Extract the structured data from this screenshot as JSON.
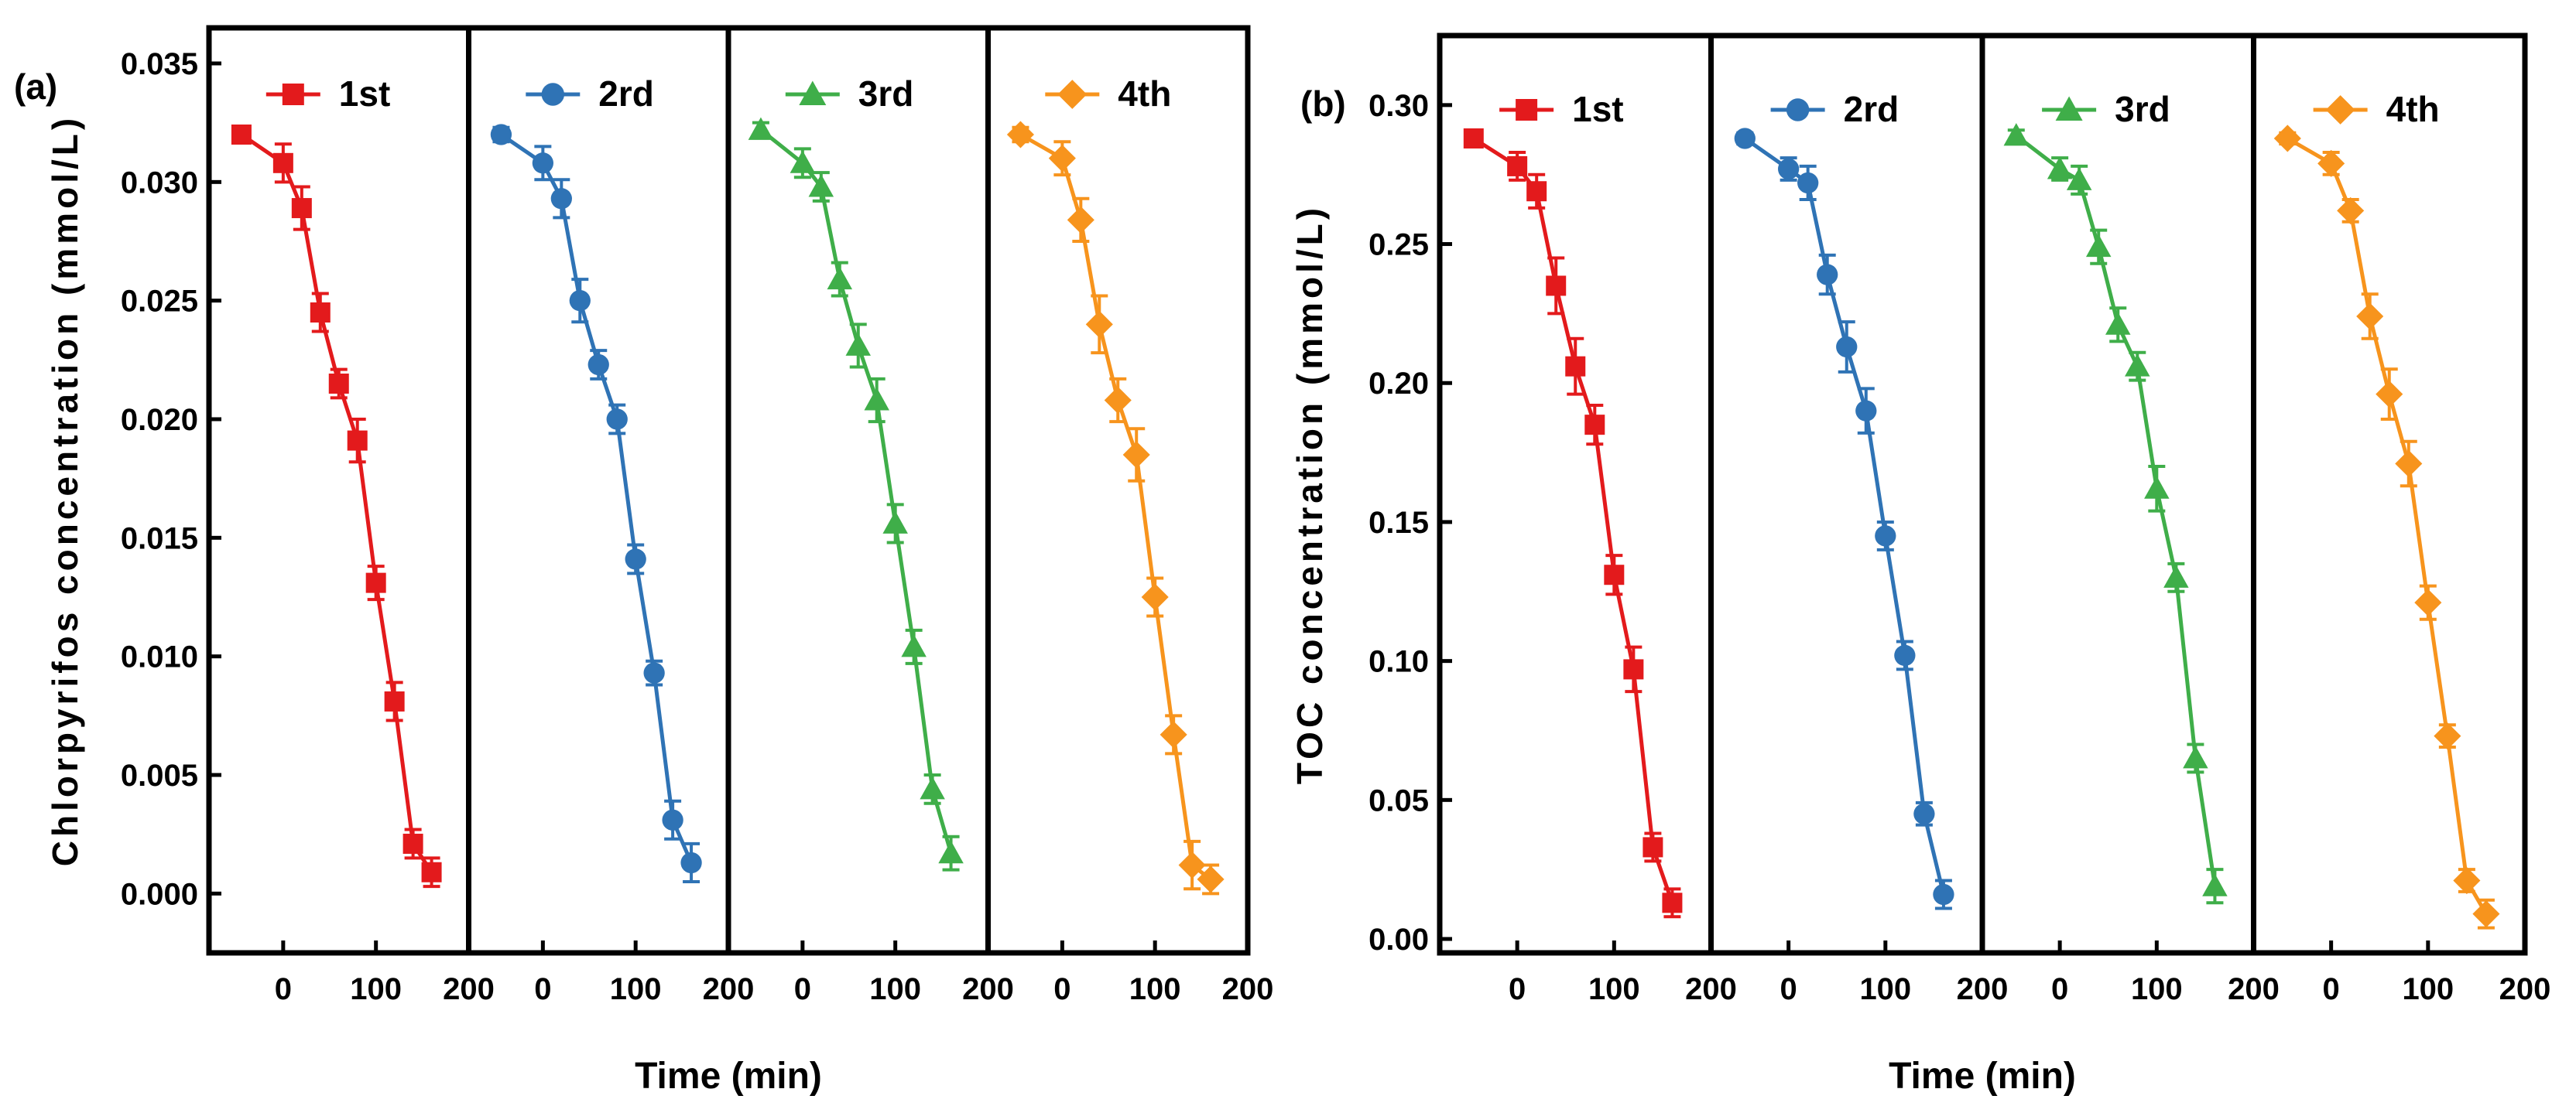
{
  "chart_data": [
    {
      "type": "line",
      "panel_label": "(a)",
      "ylabel": "Chlorpyrifos concentration (mmol/L)",
      "xlabel": "Time (min)",
      "ylim": [
        -0.0025,
        0.0365
      ],
      "yticks": [
        0.0,
        0.005,
        0.01,
        0.015,
        0.02,
        0.025,
        0.03,
        0.035
      ],
      "ytick_labels": [
        "0.000",
        "0.005",
        "0.010",
        "0.015",
        "0.020",
        "0.025",
        "0.030",
        "0.035"
      ],
      "xlim": [
        -80,
        200
      ],
      "xticks": [
        0,
        100,
        200
      ],
      "xtick_labels": [
        "0",
        "100",
        "200"
      ],
      "x": [
        -45,
        0,
        20,
        40,
        60,
        80,
        100,
        120,
        140,
        160
      ],
      "series": [
        {
          "name": "1st",
          "color": "#e31a1c",
          "marker": "square",
          "values": [
            0.032,
            0.0308,
            0.0289,
            0.0245,
            0.0215,
            0.0191,
            0.0131,
            0.0081,
            0.0021,
            0.0009
          ],
          "errors": [
            0.0003,
            0.0008,
            0.0009,
            0.0008,
            0.0006,
            0.0009,
            0.0007,
            0.0008,
            0.0006,
            0.0006
          ]
        },
        {
          "name": "2rd",
          "color": "#2f73b5",
          "marker": "circle",
          "values": [
            0.032,
            0.0308,
            0.0293,
            0.025,
            0.0223,
            0.02,
            0.0141,
            0.0093,
            0.0031,
            0.0013
          ],
          "errors": [
            0.0003,
            0.0007,
            0.0008,
            0.0009,
            0.0006,
            0.0006,
            0.0006,
            0.0005,
            0.0008,
            0.0008
          ]
        },
        {
          "name": "3rd",
          "color": "#3fae49",
          "marker": "triangle",
          "values": [
            0.0322,
            0.0308,
            0.0298,
            0.0259,
            0.0231,
            0.0208,
            0.0156,
            0.0104,
            0.0044,
            0.0017
          ],
          "errors": [
            0.0003,
            0.0006,
            0.0006,
            0.0007,
            0.0009,
            0.0009,
            0.0008,
            0.0007,
            0.0006,
            0.0007
          ]
        },
        {
          "name": "4th",
          "color": "#f7941d",
          "marker": "diamond",
          "values": [
            0.032,
            0.031,
            0.0284,
            0.024,
            0.0208,
            0.0185,
            0.0125,
            0.0067,
            0.0012,
            0.0006
          ],
          "errors": [
            0.0003,
            0.0007,
            0.0009,
            0.0012,
            0.0009,
            0.0011,
            0.0008,
            0.0008,
            0.001,
            0.0006
          ]
        }
      ]
    },
    {
      "type": "line",
      "panel_label": "(b)",
      "ylabel": "TOC concentration (mmol/L)",
      "xlabel": "Time (min)",
      "ylim": [
        -0.005,
        0.325
      ],
      "yticks": [
        0.0,
        0.05,
        0.1,
        0.15,
        0.2,
        0.25,
        0.3
      ],
      "ytick_labels": [
        "0.00",
        "0.05",
        "0.10",
        "0.15",
        "0.20",
        "0.25",
        "0.30"
      ],
      "xlim": [
        -80,
        200
      ],
      "xticks": [
        0,
        100,
        200
      ],
      "xtick_labels": [
        "0",
        "100",
        "200"
      ],
      "x": [
        -45,
        0,
        20,
        40,
        60,
        80,
        100,
        120,
        140,
        160
      ],
      "series": [
        {
          "name": "1st",
          "color": "#e31a1c",
          "marker": "square",
          "values": [
            0.288,
            0.278,
            0.269,
            0.235,
            0.206,
            0.185,
            0.131,
            0.097,
            0.033,
            0.013
          ],
          "errors": [
            0.003,
            0.005,
            0.006,
            0.01,
            0.01,
            0.007,
            0.007,
            0.008,
            0.005,
            0.005
          ]
        },
        {
          "name": "2rd",
          "color": "#2f73b5",
          "marker": "circle",
          "values": [
            0.288,
            0.277,
            0.272,
            0.239,
            0.213,
            0.19,
            0.145,
            0.102,
            0.045,
            0.016
          ],
          "errors": [
            0.002,
            0.004,
            0.006,
            0.007,
            0.009,
            0.008,
            0.005,
            0.005,
            0.004,
            0.005
          ]
        },
        {
          "name": "3rd",
          "color": "#3fae49",
          "marker": "triangle",
          "values": [
            0.289,
            0.277,
            0.273,
            0.249,
            0.221,
            0.206,
            0.162,
            0.13,
            0.065,
            0.019
          ],
          "errors": [
            0.002,
            0.004,
            0.005,
            0.006,
            0.006,
            0.005,
            0.008,
            0.005,
            0.005,
            0.006
          ]
        },
        {
          "name": "4th",
          "color": "#f7941d",
          "marker": "diamond",
          "values": [
            0.288,
            0.279,
            0.262,
            0.224,
            0.196,
            0.171,
            0.121,
            0.073,
            0.021,
            0.009
          ],
          "errors": [
            0.002,
            0.004,
            0.004,
            0.008,
            0.009,
            0.008,
            0.006,
            0.004,
            0.004,
            0.005
          ]
        }
      ]
    }
  ]
}
